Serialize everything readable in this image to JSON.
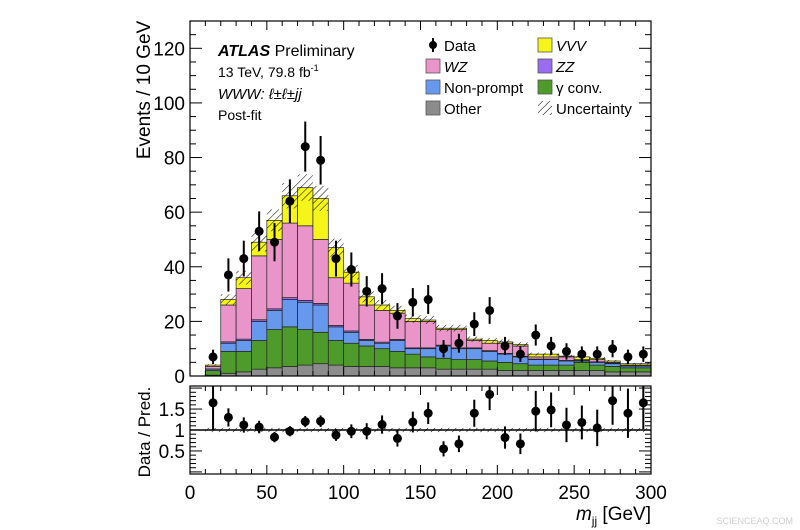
{
  "chart_data": [
    {
      "type": "bar",
      "stacked": true,
      "panel": "main",
      "ylabel": "Events / 10 GeV",
      "ylim": [
        0,
        130
      ],
      "xlim": [
        0,
        300
      ],
      "y_ticks": [
        "0",
        "20",
        "40",
        "60",
        "80",
        "100",
        "120"
      ],
      "bin_edges_start": 10,
      "bin_width": 10,
      "bin_centers": [
        15,
        25,
        35,
        45,
        55,
        65,
        75,
        85,
        95,
        105,
        115,
        125,
        135,
        145,
        155,
        165,
        175,
        185,
        195,
        205,
        215,
        225,
        235,
        245,
        255,
        265,
        275,
        285,
        295
      ],
      "annotations": {
        "experiment": "ATLAS",
        "status": "Preliminary",
        "energy_lumi": "13 TeV, 79.8 fb",
        "lumi_exponent": "-1",
        "channel_prefix": "WWW",
        "channel_suffix": ": ℓ±ℓ±jj",
        "fit": "Post-fit"
      },
      "legend_position": "top-right",
      "series": [
        {
          "name": "Other",
          "color": "#8c8c8c",
          "values": [
            0.3,
            1,
            1.5,
            2.5,
            3,
            3.5,
            4,
            4.5,
            4,
            3.5,
            3.5,
            3.5,
            3,
            3,
            3,
            2.5,
            2.5,
            2.5,
            2.5,
            2,
            2,
            2,
            2,
            2,
            2,
            2,
            1.5,
            1.5,
            1.5
          ]
        },
        {
          "name": "γ conv.",
          "color": "#4e9a2b",
          "values": [
            1.7,
            8,
            7.5,
            10.5,
            14,
            14.5,
            13,
            11.5,
            9,
            8.5,
            7.5,
            6.5,
            6,
            5,
            4,
            4,
            3.5,
            3.5,
            3,
            3,
            2.5,
            2,
            2,
            2,
            3,
            2,
            2,
            1.5,
            1.5
          ]
        },
        {
          "name": "Non-prompt",
          "color": "#6699ee",
          "values": [
            0.5,
            3,
            4,
            7,
            7,
            10,
            10,
            10,
            5,
            4,
            2,
            2,
            4,
            2,
            3,
            4.5,
            4,
            4,
            3.5,
            3,
            2.5,
            2,
            2,
            1.5,
            0.5,
            1,
            1,
            0.6,
            0.6
          ]
        },
        {
          "name": "ZZ",
          "color": "#9a6cf0",
          "values": [
            0.1,
            0.5,
            0.5,
            0.6,
            0.6,
            0.7,
            0.7,
            0.6,
            0.5,
            0.5,
            0.4,
            0.4,
            0.4,
            0.3,
            0.3,
            0.3,
            0.3,
            0.3,
            0.3,
            0.3,
            0.2,
            0.2,
            0.2,
            0.2,
            0.2,
            0.2,
            0.2,
            0.2,
            0.2
          ]
        },
        {
          "name": "WZ",
          "color": "#e995c9",
          "values": [
            0.9,
            13.5,
            18.5,
            23.4,
            25.4,
            27.3,
            27.3,
            23.4,
            17.5,
            17.5,
            12.6,
            11.6,
            9.6,
            9.7,
            9.7,
            5.7,
            6.7,
            2.7,
            2.7,
            3.7,
            3.8,
            0.8,
            0.8,
            1.3,
            0.3,
            0.8,
            0.3,
            0.2,
            0.2
          ]
        },
        {
          "name": "VVV",
          "color": "#f5f519",
          "values": [
            0.5,
            2,
            4,
            5,
            7,
            10,
            14,
            15,
            11,
            4,
            3,
            2,
            1,
            1,
            0.5,
            0.5,
            0.5,
            0.5,
            1,
            0.5,
            0.5,
            1,
            1,
            0.3,
            1,
            0.5,
            0.5,
            0.5,
            0.5
          ]
        }
      ],
      "data": {
        "name": "Data",
        "values": [
          7,
          37,
          43,
          53,
          49,
          64,
          84,
          79,
          43,
          39,
          31,
          32,
          22,
          27,
          28,
          10,
          12,
          19,
          24,
          11,
          8,
          15,
          11,
          9,
          8,
          8,
          10,
          7,
          8
        ]
      },
      "uncertainty": {
        "name": "Uncertainty",
        "relative": 0.07
      }
    },
    {
      "type": "scatter",
      "panel": "ratio",
      "ylabel": "Data / Pred.",
      "xlabel_main": "m",
      "xlabel_sub": "jj",
      "xlabel_unit": "[GeV]",
      "ylim": [
        -0.05,
        2.05
      ],
      "xlim": [
        0,
        300
      ],
      "y_ticks": [
        "0.5",
        "1",
        "1.5"
      ],
      "x_ticks": [
        "0",
        "50",
        "100",
        "150",
        "200",
        "250",
        "300"
      ],
      "reference_line": 1,
      "values": [
        1.65,
        1.3,
        1.12,
        1.07,
        0.83,
        0.97,
        1.2,
        1.21,
        0.88,
        0.97,
        0.97,
        1.13,
        0.8,
        1.19,
        1.4,
        0.55,
        0.67,
        1.4,
        1.85,
        0.82,
        0.67,
        1.45,
        1.48,
        1.12,
        1.18,
        1.05,
        1.7,
        1.4,
        1.65
      ],
      "uncertainty_relative": 0.05
    }
  ],
  "watermark": "SCIENCEAQ.COM"
}
